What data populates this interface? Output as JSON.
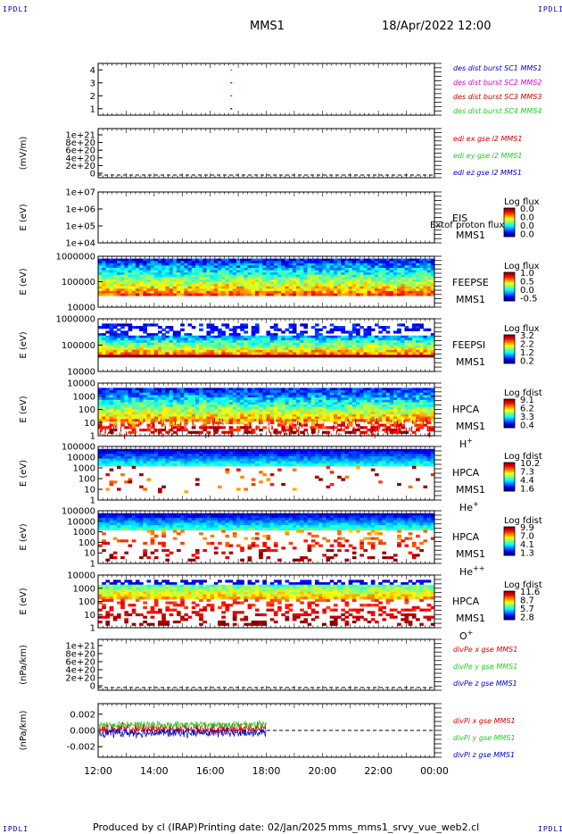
{
  "corners": {
    "tl": "IPDLI",
    "tr": "IPDLI",
    "bl": "IPDLI",
    "br": "IPDLI"
  },
  "header": {
    "spacecraft": "MMS1",
    "datetime": "18/Apr/2022 12:00"
  },
  "footer": {
    "produced": "Produced by cl (IRAP)",
    "printing": "Printing date: 02/Jan/2025",
    "file": "mms_mms1_srvy_vue_web2.cl"
  },
  "colors": {
    "red": "#d40000",
    "green": "#22cc22",
    "blue": "#0000cc",
    "magenta": "#dd00dd"
  },
  "chart_data": [
    {
      "type": "scatter",
      "panel": "des-burst",
      "ylabel": "",
      "yticks": [
        "1",
        "2",
        "3",
        "4"
      ],
      "ylim": [
        0.5,
        4.5
      ],
      "series": [
        {
          "name": "des dist burst SC1 MMS1",
          "color": "#0000cc",
          "x": [
            16.75
          ],
          "y": [
            1
          ]
        },
        {
          "name": "des dist burst SC2 MMS2",
          "color": "#dd00dd",
          "x": [
            16.75
          ],
          "y": [
            2
          ]
        },
        {
          "name": "des dist burst SC3 MMS3",
          "color": "#d40000",
          "x": [
            16.75
          ],
          "y": [
            3
          ]
        },
        {
          "name": "des dist burst SC4 MMS4",
          "color": "#22cc22",
          "x": [
            16.75
          ],
          "y": [
            4
          ]
        }
      ]
    },
    {
      "type": "line",
      "panel": "edi",
      "ylabel": "(mV/m)",
      "yticks": [
        "0",
        "2e+20",
        "4e+20",
        "6e+20",
        "8e+20",
        "1e+21"
      ],
      "series": [
        {
          "name": "edi ex gse l2 MMS1",
          "color": "#d40000",
          "values": []
        },
        {
          "name": "edi ey gse l2 MMS1",
          "color": "#22cc22",
          "values": []
        },
        {
          "name": "edi ez gse l2 MMS1",
          "color": "#0000cc",
          "values": []
        }
      ]
    },
    {
      "type": "heatmap",
      "panel": "eis",
      "ylabel": "E (eV)",
      "scale": "log",
      "yticks": [
        "1e+04",
        "1e+05",
        "1e+06",
        "1e+07"
      ],
      "labels": [
        "EIS",
        "MMS1"
      ],
      "overlay": "Extof proton flux",
      "colorbar": {
        "title": "Log flux",
        "ticks": [
          "0.0",
          "0.0",
          "0.0",
          "0.0"
        ]
      },
      "present": false
    },
    {
      "type": "heatmap",
      "panel": "feepse",
      "ylabel": "E (eV)",
      "scale": "log",
      "yticks": [
        "10000",
        "100000",
        "1000000"
      ],
      "labels": [
        "FEEPSE",
        "MMS1"
      ],
      "colorbar": {
        "title": "Log flux",
        "ticks": [
          "1.0",
          "0.5",
          "0.0",
          "-0.5"
        ]
      },
      "x_range": [
        12,
        24
      ]
    },
    {
      "type": "heatmap",
      "panel": "feepsi",
      "ylabel": "E (eV)",
      "scale": "log",
      "yticks": [
        "10000",
        "100000",
        "1000000"
      ],
      "labels": [
        "FEEPSI",
        "MMS1"
      ],
      "colorbar": {
        "title": "Log flux",
        "ticks": [
          "3.2",
          "2.2",
          "1.2",
          "0.2"
        ]
      },
      "x_range": [
        12,
        24
      ]
    },
    {
      "type": "heatmap",
      "panel": "hpca-h",
      "ylabel": "E (eV)",
      "scale": "log",
      "yticks": [
        "1",
        "10",
        "100",
        "1000",
        "10000"
      ],
      "labels": [
        "HPCA",
        "MMS1"
      ],
      "species": "H",
      "charge": "+",
      "colorbar": {
        "title": "Log fdist",
        "ticks": [
          "9.1",
          "6.2",
          "3.3",
          "0.4"
        ]
      },
      "x_range": [
        12,
        24
      ]
    },
    {
      "type": "heatmap",
      "panel": "hpca-he",
      "ylabel": "E (eV)",
      "scale": "log",
      "yticks": [
        "1",
        "10",
        "100",
        "1000",
        "10000",
        "100000"
      ],
      "labels": [
        "HPCA",
        "MMS1"
      ],
      "species": "He",
      "charge": "+",
      "colorbar": {
        "title": "Log fdist",
        "ticks": [
          "10.2",
          "7.3",
          "4.4",
          "1.6"
        ]
      },
      "x_range": [
        12,
        24
      ]
    },
    {
      "type": "heatmap",
      "panel": "hpca-he2",
      "ylabel": "E (eV)",
      "scale": "log",
      "yticks": [
        "1",
        "10",
        "100",
        "1000",
        "10000",
        "100000"
      ],
      "labels": [
        "HPCA",
        "MMS1"
      ],
      "species": "He",
      "charge": "++",
      "colorbar": {
        "title": "Log fdist",
        "ticks": [
          "9.9",
          "7.0",
          "4.1",
          "1.3"
        ]
      },
      "x_range": [
        12,
        24
      ]
    },
    {
      "type": "heatmap",
      "panel": "hpca-o",
      "ylabel": "E (eV)",
      "scale": "log",
      "yticks": [
        "1",
        "10",
        "100",
        "1000",
        "10000"
      ],
      "labels": [
        "HPCA",
        "MMS1"
      ],
      "species": "O",
      "charge": "+",
      "colorbar": {
        "title": "Log fdist",
        "ticks": [
          "11.6",
          "8.7",
          "5.7",
          "2.8"
        ]
      },
      "x_range": [
        12,
        24
      ]
    },
    {
      "type": "line",
      "panel": "divpe",
      "ylabel": "(nPa/km)",
      "yticks": [
        "0",
        "2e+20",
        "4e+20",
        "6e+20",
        "8e+20",
        "1e+21"
      ],
      "series": [
        {
          "name": "divPe x gse MMS1",
          "color": "#d40000",
          "values": []
        },
        {
          "name": "divPe y gse MMS1",
          "color": "#22cc22",
          "values": []
        },
        {
          "name": "divPe z gse MMS1",
          "color": "#0000cc",
          "values": []
        }
      ]
    },
    {
      "type": "line",
      "panel": "divpi",
      "ylabel": "(nPa/km)",
      "yticks": [
        "-0.002",
        "0.000",
        "0.002"
      ],
      "ylim": [
        -0.0033,
        0.0033
      ],
      "x_range": [
        12,
        18
      ],
      "series": [
        {
          "name": "divPi x gse MMS1",
          "color": "#d40000",
          "mean": 0.0002,
          "spread": 0.0007
        },
        {
          "name": "divPi y gse MMS1",
          "color": "#22cc22",
          "mean": 0.0007,
          "spread": 0.0004
        },
        {
          "name": "divPi z gse MMS1",
          "color": "#0000cc",
          "mean": -0.0003,
          "spread": 0.0005
        }
      ]
    }
  ],
  "xaxis": {
    "ticks": [
      "12:00",
      "14:00",
      "16:00",
      "18:00",
      "20:00",
      "22:00",
      "00:00"
    ],
    "range": [
      12,
      24
    ]
  }
}
